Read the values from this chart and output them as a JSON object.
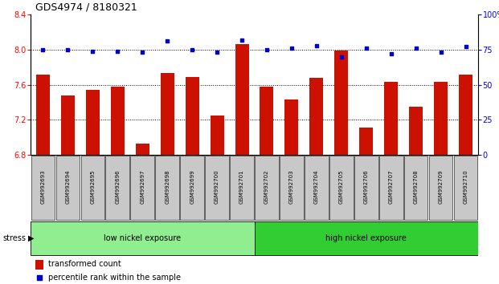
{
  "title": "GDS4974 / 8180321",
  "samples": [
    "GSM992693",
    "GSM992694",
    "GSM992695",
    "GSM992696",
    "GSM992697",
    "GSM992698",
    "GSM992699",
    "GSM992700",
    "GSM992701",
    "GSM992702",
    "GSM992703",
    "GSM992704",
    "GSM992705",
    "GSM992706",
    "GSM992707",
    "GSM992708",
    "GSM992709",
    "GSM992710"
  ],
  "transformed_count": [
    7.71,
    7.48,
    7.54,
    7.58,
    6.93,
    7.73,
    7.69,
    7.25,
    8.06,
    7.58,
    7.43,
    7.68,
    7.99,
    7.11,
    7.63,
    7.35,
    7.63,
    7.71
  ],
  "percentile_rank": [
    75,
    75,
    74,
    74,
    73,
    81,
    75,
    73,
    82,
    75,
    76,
    78,
    70,
    76,
    72,
    76,
    73,
    77
  ],
  "bar_color": "#cc1100",
  "dot_color": "#0000cc",
  "ylim_left": [
    6.8,
    8.4
  ],
  "ylim_right": [
    0,
    100
  ],
  "yticks_left": [
    6.8,
    7.2,
    7.6,
    8.0,
    8.4
  ],
  "yticks_right": [
    0,
    25,
    50,
    75,
    100
  ],
  "group1_label": "low nickel exposure",
  "group2_label": "high nickel exposure",
  "group1_color": "#90ee90",
  "group2_color": "#32cd32",
  "group1_count": 9,
  "stress_label": "stress",
  "legend_bar_label": "transformed count",
  "legend_dot_label": "percentile rank within the sample",
  "background_color": "#ffffff",
  "tick_bg_color": "#c8c8c8",
  "title_fontsize": 9,
  "axis_fontsize": 7,
  "label_fontsize": 5,
  "group_fontsize": 7,
  "legend_fontsize": 7
}
